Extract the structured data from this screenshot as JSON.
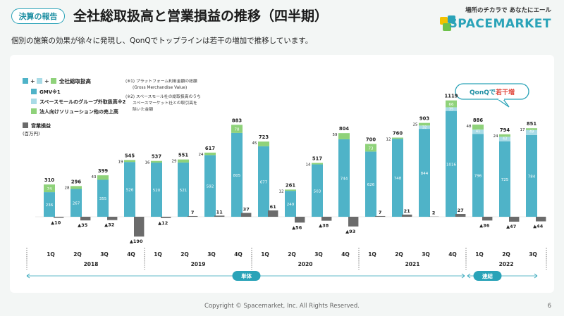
{
  "header": {
    "badge": "決算の報告",
    "title": "全社総取扱高と営業損益の推移（四半期）",
    "subtitle": "個別の施策の効果が徐々に発現し、QonQでトップラインは若干の増加で推移しています。"
  },
  "logo": {
    "tagline": "場所のチカラで あなたにエール",
    "name": "SPACEMARKET"
  },
  "footer": {
    "copyright": "Copyright © Spacemarket, Inc. All Rights Reserved.",
    "page": "6"
  },
  "legend": {
    "total_label": "全社総取扱高",
    "gmv_label": "GMV※1",
    "group_label": "スペースモールのグループ外取扱高※2",
    "corp_label": "法人向けソリューション他の売上高",
    "op_label": "営業損益",
    "unit": "(百万円)",
    "note1_a": "(※1) プラットフォーム利用金額の総額",
    "note1_b": "(Gross Merchandise Value)",
    "note2_a": "(※2) スペースモール社の総取扱高のうち",
    "note2_b": "スペースマーケット社との取引高を",
    "note2_c": "除いた金額"
  },
  "callout": {
    "prefix": "QonQで",
    "highlight": "若干増"
  },
  "segments": {
    "single": "単体",
    "consolidated": "連結"
  },
  "colors": {
    "gmv": "#4fb3c8",
    "group": "#a9dbe6",
    "corp": "#8fd27a",
    "op": "#6b6b6b",
    "accent": "#2aa3b8",
    "callout_text": "#e0473c"
  },
  "chart_data": {
    "type": "bar",
    "quarters": [
      "1Q",
      "2Q",
      "3Q",
      "4Q",
      "1Q",
      "2Q",
      "3Q",
      "4Q",
      "1Q",
      "2Q",
      "3Q",
      "4Q",
      "1Q",
      "2Q",
      "3Q",
      "4Q",
      "1Q",
      "2Q",
      "3Q"
    ],
    "years": [
      {
        "label": "2018",
        "count": 4
      },
      {
        "label": "2019",
        "count": 4
      },
      {
        "label": "2020",
        "count": 4
      },
      {
        "label": "2021",
        "count": 4
      },
      {
        "label": "2022",
        "count": 3
      }
    ],
    "total": [
      310,
      296,
      399,
      545,
      537,
      551,
      617,
      883,
      723,
      261,
      517,
      804,
      700,
      760,
      903,
      1119,
      886,
      794,
      851
    ],
    "gmv": [
      236,
      267,
      355,
      526,
      520,
      521,
      592,
      805,
      677,
      249,
      503,
      744,
      626,
      748,
      844,
      1016,
      796,
      725,
      784
    ],
    "group": [
      0,
      0,
      0,
      0,
      0,
      0,
      0,
      0,
      0,
      0,
      0,
      0,
      0,
      0,
      32,
      35,
      41,
      43,
      49
    ],
    "corp": [
      74,
      28,
      43,
      19,
      16,
      29,
      24,
      78,
      45,
      12,
      14,
      59,
      73,
      12,
      25,
      66,
      48,
      24,
      17
    ],
    "group_labels": [
      "",
      "",
      "",
      "",
      "",
      "",
      "",
      "",
      "",
      "",
      "",
      "",
      "",
      "",
      "32",
      "35",
      "41",
      "43",
      "49"
    ],
    "corp_labels": [
      "74",
      "28",
      "43",
      "19",
      "16",
      "29",
      "24",
      "78",
      "45",
      "12",
      "14",
      "59",
      "73",
      "12",
      "25",
      "66",
      "48",
      "24",
      "17"
    ],
    "operating_profit": [
      -10,
      -35,
      -32,
      -190,
      -12,
      7,
      11,
      37,
      61,
      -56,
      -38,
      -93,
      7,
      21,
      2,
      27,
      -36,
      -47,
      -44
    ],
    "op_labels": [
      "▲10",
      "▲35",
      "▲32",
      "▲190",
      "▲12",
      "7",
      "11",
      "37",
      "61",
      "▲56",
      "▲38",
      "▲93",
      "7",
      "21",
      "2",
      "27",
      "▲36",
      "▲47",
      "▲44"
    ],
    "ylabel": "(百万円)"
  }
}
